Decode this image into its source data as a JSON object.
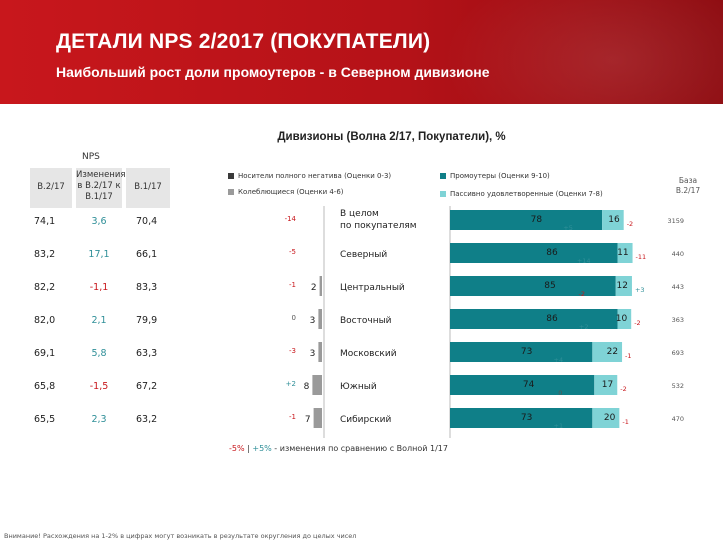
{
  "header": {
    "title": "ДЕТАЛИ NPS 2/2017 (ПОКУПАТЕЛИ)",
    "subtitle": "Наибольший рост доли промоутеров  - в Северном дивизионе"
  },
  "table": {
    "nps_label": "NPS",
    "col_b2": "В.2/17",
    "col_change": "Изменения в В.2/17 к В.1/17",
    "col_b1": "В.1/17",
    "base_label": "База В.2/17"
  },
  "legend": {
    "critics": "Носители полного негатива (Оценки 0-3)",
    "detractors": "Колеблющиеся (Оценки 4-6)",
    "promoters": "Промоутеры (Оценки 9-10)",
    "passives": "Пассивно удовлетворенные (Оценки 7-8)"
  },
  "colors": {
    "header_red": "#c8171c",
    "critics": "#3a3a3a",
    "detractors": "#9a9a9a",
    "promoters": "#0f7f88",
    "passives": "#7fd3d6",
    "negative": "#c8171c",
    "positive": "#2f8f98"
  },
  "footer": {
    "neg": "-5%",
    "sep": " | ",
    "pos": "+5%",
    "text": " - изменения по сравнению с Волной 1/17"
  },
  "bottom_note": "Внимание! Расхождения на 1-2% в цифрах могут возникать в результате округления до целых чисел",
  "chart_data": {
    "type": "bar",
    "title": "Дивизионы (Волна 2/17, Покупатели), %",
    "categories": [
      "В целом по покупателям",
      "Северный",
      "Центральный",
      "Восточный",
      "Московский",
      "Южный",
      "Сибирский"
    ],
    "rows": [
      {
        "nps_b2": "74,1",
        "change": "3,6",
        "change_sign": "pos",
        "nps_b1": "70,4",
        "critics": null,
        "detractors": null,
        "detractors_delta": "-14",
        "promoters": 78,
        "promoters_delta": "+5",
        "passives": 16,
        "passives_delta": "-2",
        "base": "3159"
      },
      {
        "nps_b2": "83,2",
        "change": "17,1",
        "change_sign": "pos",
        "nps_b1": "66,1",
        "critics": null,
        "detractors": null,
        "detractors_delta": "-5",
        "promoters": 86,
        "promoters_delta": "+14",
        "passives": 11,
        "passives_delta": "-11",
        "base": "440"
      },
      {
        "nps_b2": "82,2",
        "change": "-1,1",
        "change_sign": "neg",
        "nps_b1": "83,3",
        "critics": null,
        "detractors": 2,
        "detractors_delta": "-1",
        "promoters": 85,
        "promoters_delta": "-2",
        "passives": 12,
        "passives_delta": "+3",
        "base": "443"
      },
      {
        "nps_b2": "82,0",
        "change": "2,1",
        "change_sign": "pos",
        "nps_b1": "79,9",
        "critics": null,
        "detractors": 3,
        "detractors_delta": "0",
        "promoters": 86,
        "promoters_delta": "+2",
        "passives": 10,
        "passives_delta": "-2",
        "base": "363"
      },
      {
        "nps_b2": "69,1",
        "change": "5,8",
        "change_sign": "pos",
        "nps_b1": "63,3",
        "critics": null,
        "detractors": 3,
        "detractors_delta": "-3",
        "promoters": 73,
        "promoters_delta": "+4",
        "passives": 22,
        "passives_delta": "-1",
        "base": "693"
      },
      {
        "nps_b2": "65,8",
        "change": "-1,5",
        "change_sign": "neg",
        "nps_b1": "67,2",
        "critics": null,
        "detractors": 8,
        "detractors_delta": "+2",
        "promoters": 74,
        "promoters_delta": "0",
        "passives": 17,
        "passives_delta": "-2",
        "base": "532"
      },
      {
        "nps_b2": "65,5",
        "change": "2,3",
        "change_sign": "pos",
        "nps_b1": "63,2",
        "critics": null,
        "detractors": 7,
        "detractors_delta": "-1",
        "promoters": 73,
        "promoters_delta": "+1",
        "passives": 20,
        "passives_delta": "-1",
        "base": "470"
      }
    ],
    "xlim": [
      0,
      100
    ]
  }
}
